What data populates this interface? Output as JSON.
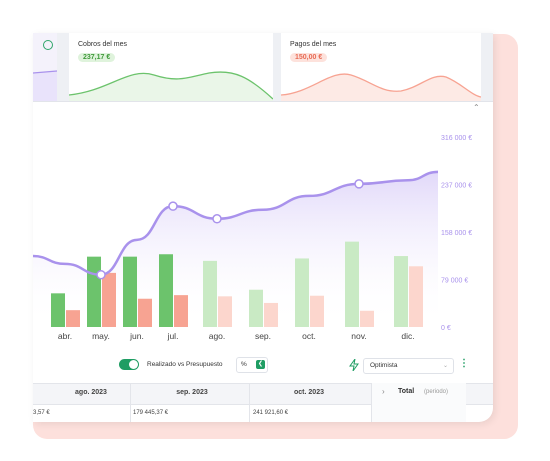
{
  "colors": {
    "accent_green": "#1f9d63",
    "income_bar": "#6cc36c",
    "income_bar_light": "#c9eac4",
    "expense_bar": "#f7a392",
    "expense_bar_light": "#fcd6cd",
    "balance_line": "#a992ec",
    "backdrop": "#fde0dc"
  },
  "mini_cards": {
    "cobros": {
      "title": "Cobros del mes",
      "value": "237,17 €"
    },
    "pagos": {
      "title": "Pagos del mes",
      "value": "150,00 €"
    }
  },
  "chart_data": {
    "type": "bar",
    "categories": [
      "abr.",
      "may.",
      "jun.",
      "jul.",
      "ago.",
      "sep.",
      "oct.",
      "nov.",
      "dic."
    ],
    "y_axis_ticks": [
      "316 000 €",
      "237 000 €",
      "158 000 €",
      "79 000 €",
      "0 €"
    ],
    "ylim": [
      0,
      316000
    ],
    "series": [
      {
        "values": [
          56000,
          117000,
          117000,
          121000,
          110000,
          62000,
          114000,
          142000,
          118000
        ]
      },
      {
        "values": [
          28000,
          90000,
          47000,
          53000,
          51000,
          40000,
          52000,
          27000,
          101000
        ]
      },
      {
        "values": [
          105000,
          87000,
          145000,
          201000,
          180000,
          195000,
          218000,
          238000,
          244000
        ]
      }
    ],
    "point_markers_at": [
      "may.",
      "jul.",
      "ago.",
      "nov."
    ]
  },
  "controls": {
    "toggle_label": "Realizado vs Presupuesto",
    "percent_label": "%",
    "scenario_value": "Optimista"
  },
  "table": {
    "columns": [
      "ago. 2023",
      "sep. 2023",
      "oct. 2023"
    ],
    "row": [
      "3,57 €",
      "179 445,37 €",
      "241 921,60 €"
    ],
    "total_label": "Total",
    "total_sub": "(periodo)"
  }
}
